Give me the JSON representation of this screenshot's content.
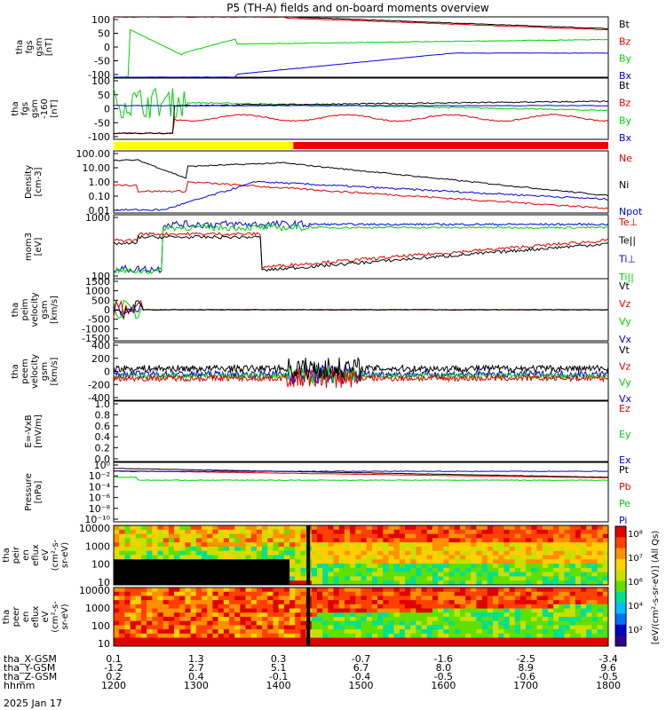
{
  "title": "P5 (TH-A) fields and on-board moments overview",
  "date": "2025 Jan 17",
  "colors": {
    "black": "#000000",
    "red": "#e00000",
    "green": "#00d000",
    "blue": "#0000e0",
    "yellow": "#ffff00",
    "barred": "#ee0000"
  },
  "chart_data": [
    {
      "type": "line",
      "ylabel": [
        "tha",
        "fgs",
        "gsm",
        "[nT]"
      ],
      "yticks": [
        "100",
        "50",
        "0",
        "-50",
        "-100"
      ],
      "ylim": [
        -100,
        100
      ],
      "legend": [
        "Bt",
        "Bz",
        "By",
        "Bx"
      ]
    },
    {
      "type": "line",
      "ylabel": [
        "tha",
        "fgs",
        "gsm",
        "-160",
        "[nT]"
      ],
      "yticks": [
        "100",
        "50",
        "0",
        "-50",
        "-100"
      ],
      "ylim": [
        -120,
        110
      ],
      "legend": [
        "Bt",
        "Bz",
        "By",
        "Bx"
      ]
    },
    {
      "type": "bar",
      "ylabel": [],
      "segments": [
        {
          "from": 1200,
          "to": 1418,
          "color": "yellow"
        },
        {
          "from": 1418,
          "to": 1800,
          "color": "red"
        }
      ]
    },
    {
      "type": "line",
      "ylabel": [
        "Density",
        "[cm-3]"
      ],
      "yticks": [
        "100.00",
        "10.00",
        "1.00",
        "0.10",
        "0.01"
      ],
      "log": true,
      "ylim": [
        0.01,
        100
      ],
      "legend": [
        "Ne",
        "Ni",
        "Npot"
      ]
    },
    {
      "type": "line",
      "ylabel": [
        "mom3",
        "[eV]"
      ],
      "yticks": [
        "1000",
        "100"
      ],
      "log": true,
      "ylim": [
        60,
        10000
      ],
      "legend": [
        "Te⊥",
        "Te||",
        "Ti⊥",
        "Ti||"
      ]
    },
    {
      "type": "line",
      "ylabel": [
        "tha",
        "peim",
        "velocity",
        "gsm",
        "[km/s]"
      ],
      "yticks": [
        "1500",
        "1000",
        "500",
        "0",
        "-500",
        "-1000",
        "-1500"
      ],
      "ylim": [
        -1500,
        1500
      ],
      "legend": [
        "Vt",
        "Vz",
        "Vy",
        "Vx"
      ]
    },
    {
      "type": "line",
      "ylabel": [
        "tha",
        "peem",
        "velocity",
        "gsm",
        "[km/s]"
      ],
      "yticks": [
        "400",
        "200",
        "0",
        "-200",
        "-400"
      ],
      "ylim": [
        -500,
        600
      ],
      "legend": [
        "Vt",
        "Vz",
        "Vy",
        "Vx"
      ]
    },
    {
      "type": "line",
      "ylabel": [
        "E=-VxB",
        "[mV/m]"
      ],
      "yticks": [
        "1.0",
        "0.8",
        "0.6",
        "0.4",
        "0.2",
        "0.0"
      ],
      "ylim": [
        0,
        1
      ],
      "legend": [
        "Ez",
        "Ey",
        "Ex"
      ]
    },
    {
      "type": "line",
      "ylabel": [
        "Pressure",
        "[nPa]"
      ],
      "yticks": [
        "10⁰",
        "10⁻²",
        "10⁻⁴",
        "10⁻⁶",
        "10⁻⁸",
        "10⁻¹⁰"
      ],
      "log": true,
      "legend": [
        "Pt",
        "Pb",
        "Pe",
        "Pi"
      ]
    },
    {
      "type": "heatmap",
      "ylabel": [
        "tha",
        "peir",
        "en",
        "eflux",
        "eV",
        "(cm²-s-",
        "sr-eV)"
      ],
      "yticks": [
        "10000",
        "1000",
        "100",
        "10"
      ],
      "log": true
    },
    {
      "type": "heatmap",
      "ylabel": [
        "tha",
        "peer",
        "en",
        "eflux",
        "eV",
        "(cm²-s-",
        "sr-eV)"
      ],
      "yticks": [
        "10000",
        "1000",
        "100",
        "10"
      ],
      "log": true
    }
  ],
  "colorbar": {
    "label": "[eV/(cm²-s-sr-eV)] (All Qs)",
    "ticks": [
      "10⁸",
      "10⁷",
      "10⁶",
      "10⁴",
      "10²"
    ]
  },
  "xaxis": {
    "rows": [
      {
        "name": "tha_X-GSM",
        "values": [
          "0.1",
          "1.3",
          "0.3",
          "-0.7",
          "-1.6",
          "-2.5",
          "-3.4"
        ]
      },
      {
        "name": "tha_Y-GSM",
        "values": [
          "-1.2",
          "2.7",
          "5.1",
          "6.7",
          "8.0",
          "8.9",
          "9.6"
        ]
      },
      {
        "name": "tha_Z-GSM",
        "values": [
          "0.2",
          "0.4",
          "-0.1",
          "-0.4",
          "-0.5",
          "-0.6",
          "-0.5"
        ]
      },
      {
        "name": "hhmm",
        "values": [
          "1200",
          "1300",
          "1400",
          "1500",
          "1600",
          "1700",
          "1800"
        ]
      }
    ]
  }
}
